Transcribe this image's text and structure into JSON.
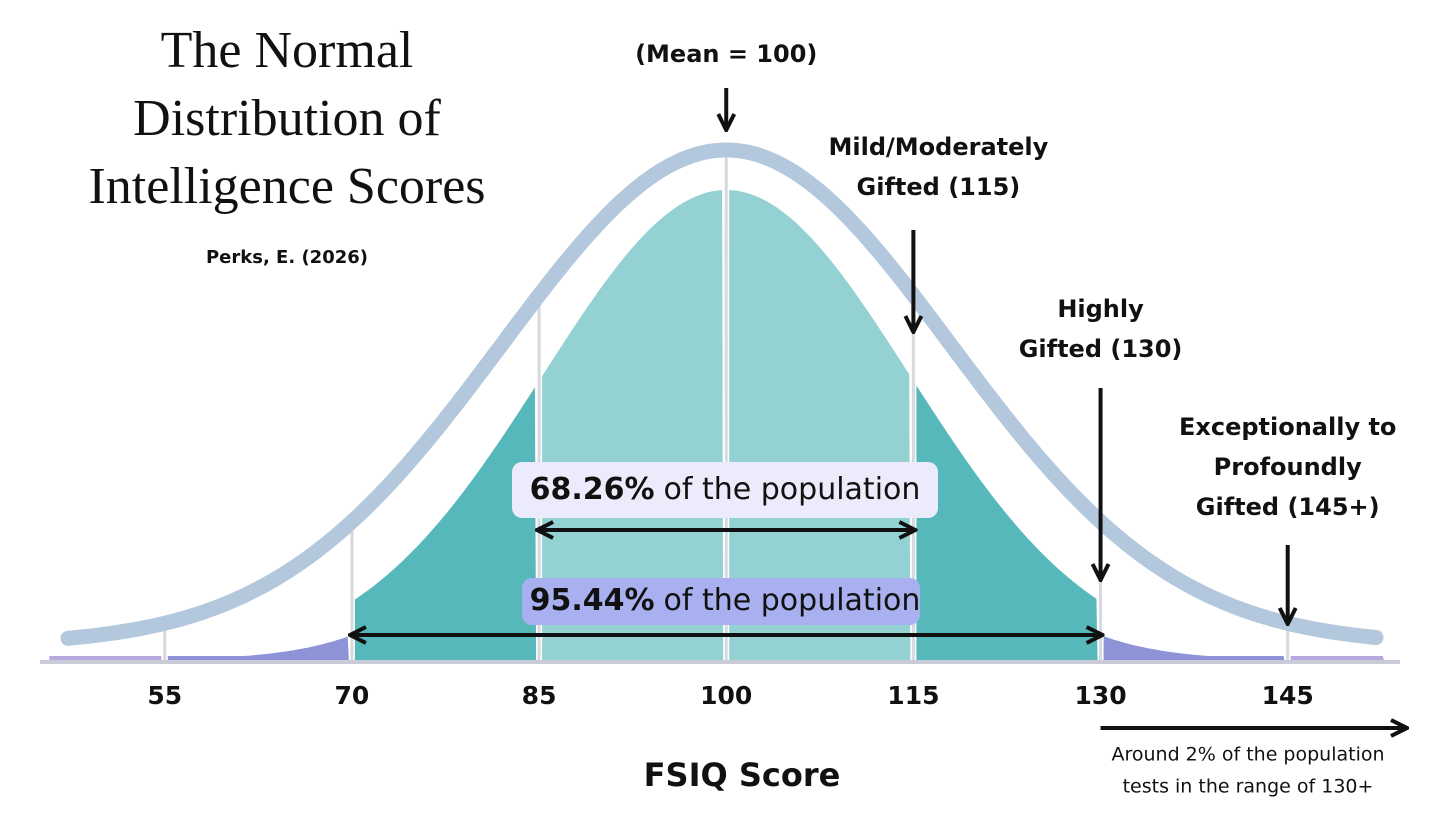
{
  "chart_data": {
    "type": "bell",
    "title": [
      "The Normal",
      "Distribution of",
      "Intelligence Scores"
    ],
    "subtitle": "Perks, E. (2026)",
    "x_label": "FSIQ Score",
    "xlim": [
      45,
      154
    ],
    "xticks": [
      55,
      70,
      85,
      100,
      115,
      130,
      145
    ],
    "annotations": [
      {
        "lines": [
          "(Mean = 100)"
        ],
        "x": 100
      },
      {
        "lines": [
          "Mild/Moderately",
          "Gifted (115)"
        ],
        "x": 115
      },
      {
        "lines": [
          "Highly",
          "Gifted (130)"
        ],
        "x": 130
      },
      {
        "lines": [
          "Exceptionally to",
          "Profoundly",
          "Gifted (145+)"
        ],
        "x": 145
      }
    ],
    "ranges": [
      {
        "label": "68.26%",
        "text": "of the population",
        "range": [
          85,
          115
        ],
        "color": "#ecebfb"
      },
      {
        "label": "95.44%",
        "text": "of the population",
        "range": [
          70,
          130
        ],
        "color": "#a9b0f0"
      }
    ],
    "note": {
      "lines": [
        "Around 2% of the population",
        "tests in the range of 130+"
      ],
      "from": 130
    }
  }
}
